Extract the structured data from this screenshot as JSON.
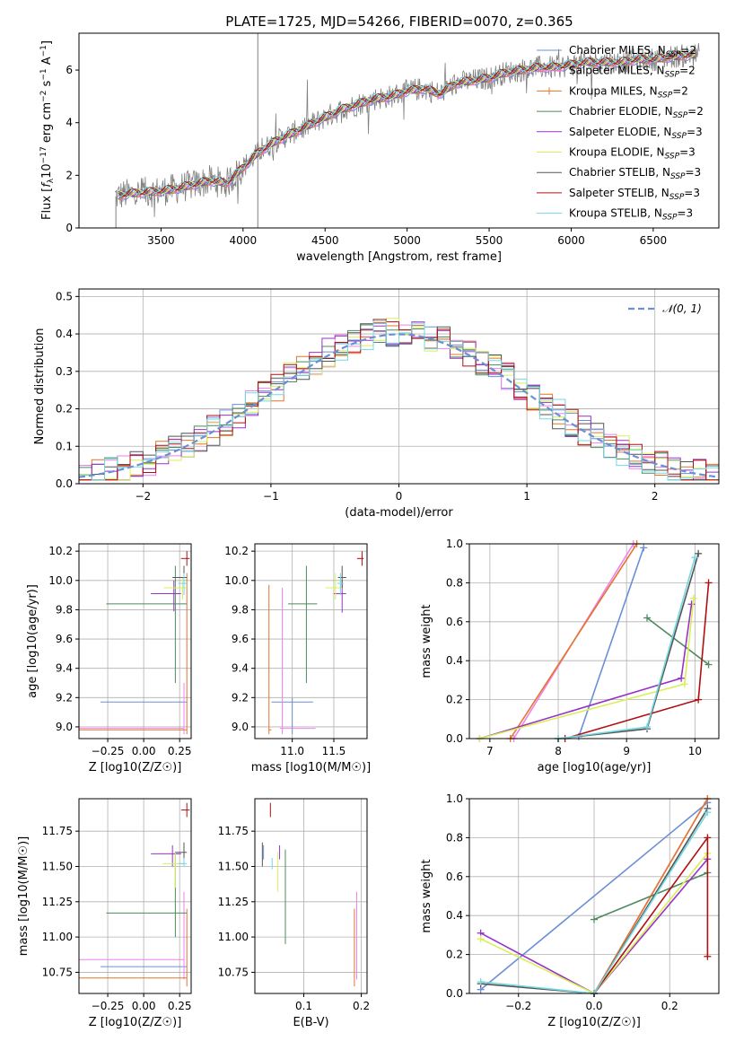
{
  "title": "PLATE=1725, MJD=54266, FIBERID=0070, z=0.365",
  "colors": {
    "chabrier_miles": "#6b8fd6",
    "salpeter_miles": "#ee82ee",
    "kroupa_miles": "#e5742a",
    "chabrier_elodie": "#4e8a5e",
    "salpeter_elodie": "#9a32c8",
    "kroupa_elodie": "#d8f055",
    "chabrier_stelib": "#555555",
    "salpeter_stelib": "#b01010",
    "kroupa_stelib": "#73d8e0",
    "spectrum": "#808080",
    "normal": "#6b8fd6"
  },
  "chart_data": [
    {
      "type": "line",
      "title": "PLATE=1725, MJD=54266, FIBERID=0070, z=0.365",
      "xlabel": "wavelength [Angstrom, rest frame]",
      "xlim": [
        3000,
        6900
      ],
      "ylim": [
        0,
        7.4
      ],
      "xticks": [
        "3500",
        "4000",
        "4500",
        "5000",
        "5500",
        "6000",
        "6500"
      ],
      "xtick_values": [
        3500,
        4000,
        4500,
        5000,
        5500,
        6000,
        6500
      ],
      "yticks": [
        "0",
        "2",
        "4",
        "6"
      ],
      "ytick_values": [
        0,
        2,
        4,
        6
      ],
      "legend_position": "top-right",
      "legend": [
        "Chabrier MILES, N_SSP=2",
        "Salpeter MILES, N_SSP=2",
        "Kroupa MILES, N_SSP=2",
        "Chabrier ELODIE, N_SSP=2",
        "Salpeter ELODIE, N_SSP=3",
        "Kroupa ELODIE, N_SSP=3",
        "Chabrier STELIB, N_SSP=3",
        "Salpeter STELIB, N_SSP=3",
        "Kroupa STELIB, N_SSP=3"
      ],
      "model_continuum": {
        "x": [
          3220,
          3300,
          3400,
          3500,
          3600,
          3700,
          3800,
          3900,
          4000,
          4100,
          4200,
          4300,
          4400,
          4500,
          4600,
          4700,
          4800,
          4900,
          5000,
          5100,
          5200,
          5300,
          5400,
          5500,
          5600,
          5700,
          5800,
          5900,
          6000,
          6100,
          6200,
          6300,
          6400,
          6500,
          6600,
          6700,
          6780
        ],
        "y": [
          1.2,
          1.3,
          1.35,
          1.4,
          1.5,
          1.65,
          1.8,
          1.7,
          2.3,
          2.9,
          3.3,
          3.6,
          3.9,
          4.2,
          4.5,
          4.7,
          4.9,
          5.0,
          5.2,
          5.3,
          5.1,
          5.5,
          5.6,
          5.7,
          5.9,
          6.0,
          6.1,
          6.1,
          6.2,
          6.3,
          6.3,
          6.3,
          6.4,
          6.4,
          6.5,
          6.55,
          6.6
        ]
      }
    },
    {
      "type": "line",
      "xlabel": "(data-model)/error",
      "ylabel": "Normed distribution",
      "xlim": [
        -2.5,
        2.5
      ],
      "ylim": [
        0,
        0.52
      ],
      "xticks": [
        "−2",
        "−1",
        "0",
        "1",
        "2"
      ],
      "xtick_values": [
        -2,
        -1,
        0,
        1,
        2
      ],
      "yticks": [
        "0.0",
        "0.1",
        "0.2",
        "0.3",
        "0.4",
        "0.5"
      ],
      "ytick_values": [
        0,
        0.1,
        0.2,
        0.3,
        0.4,
        0.5
      ],
      "grid": true,
      "legend": [
        "𝒩(0, 1)"
      ],
      "legend_position": "top-right"
    },
    {
      "type": "scatter",
      "xlabel": "Z [log10(Z/Z☉)]",
      "ylabel": "age [log10(age/yr)]",
      "xlim": [
        -0.45,
        0.33
      ],
      "ylim": [
        8.92,
        10.25
      ],
      "xticks": [
        "−0.25",
        "0.00",
        "0.25"
      ],
      "xtick_values": [
        -0.25,
        0,
        0.25
      ],
      "yticks": [
        "9.0",
        "9.2",
        "9.4",
        "9.6",
        "9.8",
        "10.0",
        "10.2"
      ],
      "ytick_values": [
        9.0,
        9.2,
        9.4,
        9.6,
        9.8,
        10.0,
        10.2
      ],
      "grid": true,
      "points": [
        {
          "series": "Chabrier MILES",
          "x": [
            -0.3,
            0.3
          ],
          "y": [
            9.17,
            9.17
          ]
        },
        {
          "series": "Salpeter MILES",
          "x": [
            -0.45,
            0.28
          ],
          "y": [
            8.99,
            8.99
          ]
        },
        {
          "series": "Kroupa MILES",
          "x": [
            -0.45,
            0.3
          ],
          "y": [
            8.98,
            8.98
          ]
        },
        {
          "series": "Kroupa MILES vertical",
          "x": [
            0.3,
            0.3
          ],
          "y": [
            8.98,
            10.0
          ]
        },
        {
          "series": "Chabrier ELODIE",
          "x": [
            -0.26,
            0.3
          ],
          "y": [
            9.84,
            9.84
          ]
        },
        {
          "series": "Chabrier ELODIE vertical",
          "x": [
            0.22,
            0.22
          ],
          "y": [
            9.3,
            10.1
          ]
        },
        {
          "series": "Salpeter ELODIE",
          "x": [
            0.05,
            0.26
          ],
          "y": [
            9.91,
            9.91
          ]
        },
        {
          "series": "Kroupa ELODIE",
          "x": [
            0.14,
            0.3
          ],
          "y": [
            9.95,
            9.95
          ]
        },
        {
          "series": "Chabrier STELIB",
          "x": [
            0.2,
            0.3
          ],
          "y": [
            10.02,
            10.02
          ]
        },
        {
          "series": "Salpeter STELIB",
          "x": [
            0.26,
            0.32
          ],
          "y": [
            10.15,
            10.15
          ]
        },
        {
          "series": "Kroupa STELIB",
          "x": [
            0.24,
            0.3
          ],
          "y": [
            9.98,
            9.98
          ]
        }
      ]
    },
    {
      "type": "scatter",
      "xlabel": "mass [log10(M/M☉)]",
      "xlim": [
        10.55,
        11.9
      ],
      "ylim": [
        8.92,
        10.25
      ],
      "xticks": [
        "11.0",
        "11.5"
      ],
      "xtick_values": [
        11.0,
        11.5
      ],
      "yticks": [
        "9.0",
        "9.2",
        "9.4",
        "9.6",
        "9.8",
        "10.0",
        "10.2"
      ],
      "ytick_values": [
        9.0,
        9.2,
        9.4,
        9.6,
        9.8,
        10.0,
        10.2
      ],
      "grid": true
    },
    {
      "type": "line",
      "xlabel": "age [log10(age/yr)]",
      "ylabel": "mass weight",
      "xlim": [
        6.7,
        10.35
      ],
      "ylim": [
        0,
        1
      ],
      "xticks": [
        "7",
        "8",
        "9",
        "10"
      ],
      "xtick_values": [
        7,
        8,
        9,
        10
      ],
      "yticks": [
        "0.0",
        "0.2",
        "0.4",
        "0.6",
        "0.8",
        "1.0"
      ],
      "ytick_values": [
        0,
        0.2,
        0.4,
        0.6,
        0.8,
        1.0
      ],
      "grid": true,
      "series": [
        {
          "key": "chabrier_miles",
          "x": [
            8.3,
            9.25
          ],
          "y": [
            0.01,
            0.98
          ]
        },
        {
          "key": "salpeter_miles",
          "x": [
            7.35,
            9.1
          ],
          "y": [
            0.0,
            1.0
          ]
        },
        {
          "key": "kroupa_miles",
          "x": [
            7.3,
            9.15
          ],
          "y": [
            0.0,
            1.0
          ]
        },
        {
          "key": "chabrier_elodie",
          "x": [
            9.3,
            10.2
          ],
          "y": [
            0.62,
            0.38
          ]
        },
        {
          "key": "salpeter_elodie",
          "x": [
            6.85,
            9.8,
            9.95
          ],
          "y": [
            0.0,
            0.31,
            0.69
          ]
        },
        {
          "key": "kroupa_elodie",
          "x": [
            6.85,
            9.85,
            9.98
          ],
          "y": [
            0.0,
            0.28,
            0.72
          ]
        },
        {
          "key": "chabrier_stelib",
          "x": [
            8.0,
            9.3,
            10.05
          ],
          "y": [
            0.0,
            0.05,
            0.95
          ]
        },
        {
          "key": "salpeter_stelib",
          "x": [
            8.1,
            10.05,
            10.2
          ],
          "y": [
            0.0,
            0.2,
            0.8
          ]
        },
        {
          "key": "kroupa_stelib",
          "x": [
            8.0,
            9.3,
            10.0
          ],
          "y": [
            0.0,
            0.06,
            0.93
          ]
        }
      ]
    },
    {
      "type": "scatter",
      "xlabel": "Z [log10(Z/Z☉)]",
      "ylabel": "mass [log10(M/M☉)]",
      "xlim": [
        -0.45,
        0.33
      ],
      "ylim": [
        10.6,
        11.98
      ],
      "xticks": [
        "−0.25",
        "0.00",
        "0.25"
      ],
      "xtick_values": [
        -0.25,
        0,
        0.25
      ],
      "yticks": [
        "10.75",
        "11.00",
        "11.25",
        "11.50",
        "11.75"
      ],
      "ytick_values": [
        10.75,
        11.0,
        11.25,
        11.5,
        11.75
      ],
      "grid": true
    },
    {
      "type": "scatter",
      "xlabel": "E(B-V)",
      "xlim": [
        0.015,
        0.21
      ],
      "ylim": [
        10.6,
        11.98
      ],
      "xticks": [
        "0.1",
        "0.2"
      ],
      "xtick_values": [
        0.1,
        0.2
      ],
      "yticks": [
        "10.75",
        "11.00",
        "11.25",
        "11.50",
        "11.75"
      ],
      "ytick_values": [
        10.75,
        11.0,
        11.25,
        11.5,
        11.75
      ],
      "grid": true
    },
    {
      "type": "line",
      "xlabel": "Z [log10(Z/Z☉)]",
      "ylabel": "mass weight",
      "xlim": [
        -0.33,
        0.33
      ],
      "ylim": [
        0,
        1
      ],
      "xticks": [
        "−0.2",
        "0.0",
        "0.2"
      ],
      "xtick_values": [
        -0.2,
        0,
        0.2
      ],
      "yticks": [
        "0.0",
        "0.2",
        "0.4",
        "0.6",
        "0.8",
        "1.0"
      ],
      "ytick_values": [
        0,
        0.2,
        0.4,
        0.6,
        0.8,
        1.0
      ],
      "grid": true,
      "series": [
        {
          "key": "chabrier_miles",
          "x": [
            -0.3,
            0.3
          ],
          "y": [
            0.02,
            0.98
          ]
        },
        {
          "key": "salpeter_miles",
          "x": [
            0.0,
            0.3
          ],
          "y": [
            0.0,
            1.0
          ]
        },
        {
          "key": "kroupa_miles",
          "x": [
            0.0,
            0.3
          ],
          "y": [
            0.0,
            1.0
          ]
        },
        {
          "key": "chabrier_elodie",
          "x": [
            0.0,
            0.3
          ],
          "y": [
            0.38,
            0.62
          ]
        },
        {
          "key": "salpeter_elodie",
          "x": [
            -0.3,
            0.0,
            0.3
          ],
          "y": [
            0.31,
            0.0,
            0.69
          ]
        },
        {
          "key": "kroupa_elodie",
          "x": [
            -0.3,
            0.0,
            0.3
          ],
          "y": [
            0.28,
            0.0,
            0.72
          ]
        },
        {
          "key": "chabrier_stelib",
          "x": [
            -0.3,
            0.0,
            0.3
          ],
          "y": [
            0.05,
            0.0,
            0.95
          ]
        },
        {
          "key": "salpeter_stelib",
          "x": [
            0.0,
            0.3,
            0.3
          ],
          "y": [
            0.0,
            0.8,
            0.19
          ]
        },
        {
          "key": "kroupa_stelib",
          "x": [
            -0.3,
            0.0,
            0.3
          ],
          "y": [
            0.06,
            0.0,
            0.93
          ]
        }
      ]
    }
  ]
}
